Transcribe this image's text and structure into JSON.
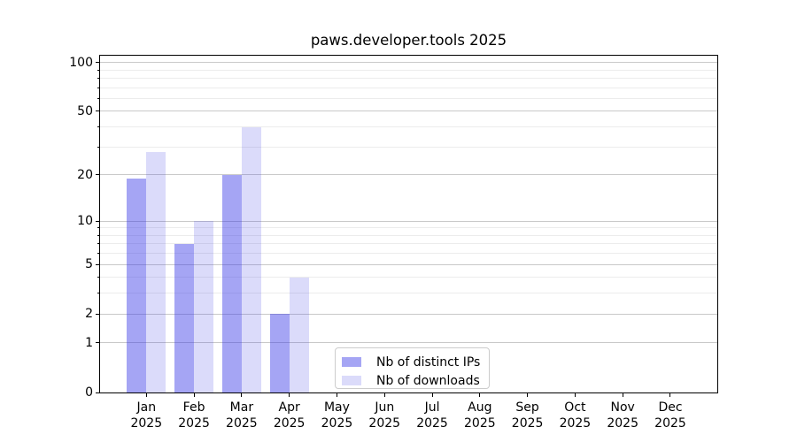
{
  "title": "paws.developer.tools 2025",
  "chart_data": {
    "type": "bar",
    "title": "paws.developer.tools 2025",
    "categories": [
      "Jan",
      "Feb",
      "Mar",
      "Apr",
      "May",
      "Jun",
      "Jul",
      "Aug",
      "Sep",
      "Oct",
      "Nov",
      "Dec"
    ],
    "x_tick_year": "2025",
    "series": [
      {
        "name": "Nb of distinct IPs",
        "color": "#3737E673",
        "apparent_color": "#a7a7f2",
        "values": [
          19,
          7,
          20,
          2,
          0,
          0,
          0,
          0,
          0,
          0,
          0,
          0
        ]
      },
      {
        "name": "Nb of downloads",
        "color": "#4B4BE633",
        "apparent_color": "#dcdcf9",
        "values": [
          28,
          10,
          40,
          4,
          0,
          0,
          0,
          0,
          0,
          0,
          0,
          0
        ]
      }
    ],
    "xlabel": "",
    "ylabel": "",
    "yscale": "log1p",
    "ylim": [
      0,
      110
    ],
    "y_major_ticks": [
      0,
      1,
      2,
      5,
      10,
      20,
      50,
      100
    ],
    "y_minor_ticks": [
      3,
      4,
      6,
      7,
      8,
      9,
      30,
      40,
      60,
      70,
      80,
      90
    ],
    "grid": true,
    "legend_position": "lower center"
  }
}
